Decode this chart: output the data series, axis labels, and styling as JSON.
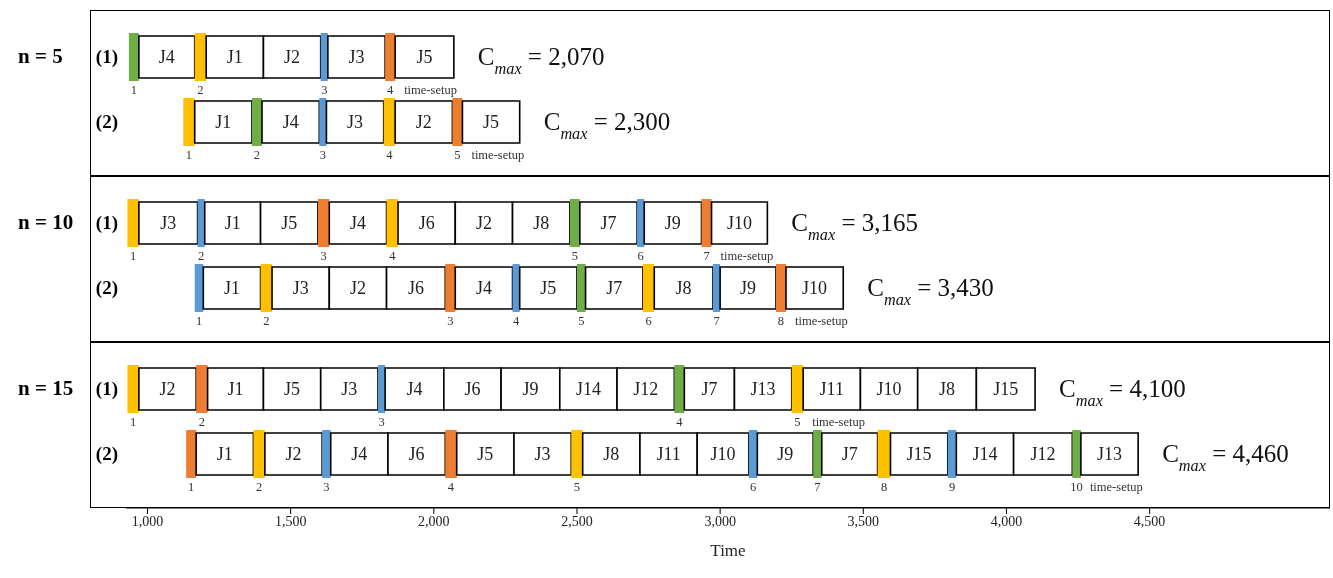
{
  "chart_data": [
    {
      "type": "bar",
      "orientation": "horizontal",
      "title": "n = 5",
      "categories": [
        "(1)",
        "(2)"
      ],
      "xlim": [
        925,
        5130
      ],
      "tick_labels": "y",
      "series": [
        {
          "base": [
            935,
            1125
          ],
          "values": [
            35,
            40
          ],
          "colors": [
            "#70ad47",
            "#ffc000"
          ],
          "value_labels": [
            null,
            null
          ]
        },
        {
          "base": [
            970,
            1165
          ],
          "values": [
            195,
            200
          ],
          "colors": [
            "#ffffff",
            "#ffffff"
          ],
          "value_labels": [
            "J4",
            "J1"
          ]
        },
        {
          "base": [
            1165,
            1365
          ],
          "values": [
            40,
            35
          ],
          "colors": [
            "#ffc000",
            "#70ad47"
          ],
          "value_labels": [
            null,
            null
          ]
        },
        {
          "base": [
            1205,
            1400
          ],
          "values": [
            200,
            200
          ],
          "colors": [
            "#ffffff",
            "#ffffff"
          ],
          "value_labels": [
            "J1",
            "J4"
          ]
        },
        {
          "base": [
            1405,
            1600
          ],
          "values": [
            200,
            25
          ],
          "colors": [
            "#ffffff",
            "#5b9bd5"
          ],
          "value_labels": [
            "J2",
            null
          ]
        },
        {
          "base": [
            1605,
            1625
          ],
          "values": [
            25,
            200
          ],
          "colors": [
            "#5b9bd5",
            "#ffffff"
          ],
          "value_labels": [
            null,
            "J3"
          ]
        },
        {
          "base": [
            1630,
            1825
          ],
          "values": [
            200,
            40
          ],
          "colors": [
            "#ffffff",
            "#ffc000"
          ],
          "value_labels": [
            "J3",
            null
          ]
        },
        {
          "base": [
            1830,
            1865
          ],
          "values": [
            35,
            200
          ],
          "colors": [
            "#ed7d31",
            "#ffffff"
          ],
          "value_labels": [
            null,
            "J2"
          ]
        },
        {
          "base": [
            1865,
            2065
          ],
          "values": [
            205,
            35
          ],
          "colors": [
            "#ffffff",
            "#ed7d31"
          ],
          "value_labels": [
            "J5",
            null
          ]
        },
        {
          "base": [
            null,
            2100
          ],
          "values": [
            null,
            200
          ],
          "colors": [
            null,
            "#ffffff"
          ],
          "value_labels": [
            null,
            "J5"
          ]
        }
      ],
      "annotations": [
        {
          "text": "C$_{max}$ = 2,070",
          "x": 2070,
          "y": "(1)"
        },
        {
          "text": "C$_{max}$ = 2,300",
          "x": 2300,
          "y": "(2)"
        },
        {
          "text": "time-setup",
          "x": 1865,
          "y": "(1)"
        },
        {
          "text": "time-setup",
          "x": 2100,
          "y": "(2)"
        },
        {
          "text": "1",
          "x": 935,
          "y": "(1)"
        },
        {
          "text": "2",
          "x": 1165,
          "y": "(1)"
        },
        {
          "text": "3",
          "x": 1605,
          "y": "(1)"
        },
        {
          "text": "4",
          "x": 1830,
          "y": "(1)"
        },
        {
          "text": "1",
          "x": 1125,
          "y": "(2)"
        },
        {
          "text": "2",
          "x": 1365,
          "y": "(2)"
        },
        {
          "text": "3",
          "x": 1600,
          "y": "(2)"
        },
        {
          "text": "4",
          "x": 1825,
          "y": "(2)"
        },
        {
          "text": "5",
          "x": 2065,
          "y": "(2)"
        }
      ]
    },
    {
      "type": "bar",
      "orientation": "horizontal",
      "title": "n = 10",
      "categories": [
        "(1)",
        "(2)"
      ],
      "xlim": [
        925,
        5130
      ],
      "tick_labels": "y",
      "series": [
        {
          "base": [
            930,
            1165
          ],
          "values": [
            40,
            30
          ],
          "colors": [
            "#ffc000",
            "#5b9bd5"
          ],
          "value_labels": [
            null,
            null
          ]
        },
        {
          "base": [
            970,
            1195
          ],
          "values": [
            205,
            200
          ],
          "colors": [
            "#ffffff",
            "#ffffff"
          ],
          "value_labels": [
            "J3",
            "J1"
          ]
        },
        {
          "base": [
            1175,
            1395
          ],
          "values": [
            25,
            40
          ],
          "colors": [
            "#5b9bd5",
            "#ffc000"
          ],
          "value_labels": [
            null,
            null
          ]
        },
        {
          "base": [
            1200,
            1435
          ],
          "values": [
            195,
            200
          ],
          "colors": [
            "#ffffff",
            "#ffffff"
          ],
          "value_labels": [
            "J1",
            "J3"
          ]
        },
        {
          "base": [
            1395,
            1635
          ],
          "values": [
            200,
            200
          ],
          "colors": [
            "#ffffff",
            "#ffffff"
          ],
          "value_labels": [
            "J5",
            "J2"
          ]
        },
        {
          "base": [
            1595,
            1835
          ],
          "values": [
            40,
            205
          ],
          "colors": [
            "#ed7d31",
            "#ffffff"
          ],
          "value_labels": [
            null,
            "J6"
          ]
        },
        {
          "base": [
            1635,
            2040
          ],
          "values": [
            200,
            35
          ],
          "colors": [
            "#ffffff",
            "#ed7d31"
          ],
          "value_labels": [
            "J4",
            null
          ]
        },
        {
          "base": [
            1835,
            2075
          ],
          "values": [
            40,
            200
          ],
          "colors": [
            "#ffc000",
            "#ffffff"
          ],
          "value_labels": [
            null,
            "J4"
          ]
        },
        {
          "base": [
            1875,
            2275
          ],
          "values": [
            200,
            25
          ],
          "colors": [
            "#ffffff",
            "#5b9bd5"
          ],
          "value_labels": [
            "J6",
            null
          ]
        },
        {
          "base": [
            2075,
            2300
          ],
          "values": [
            200,
            200
          ],
          "colors": [
            "#ffffff",
            "#ffffff"
          ],
          "value_labels": [
            "J2",
            "J5"
          ]
        },
        {
          "base": [
            2275,
            2500
          ],
          "values": [
            200,
            30
          ],
          "colors": [
            "#ffffff",
            "#70ad47"
          ],
          "value_labels": [
            "J8",
            null
          ]
        },
        {
          "base": [
            2475,
            2530
          ],
          "values": [
            35,
            200
          ],
          "colors": [
            "#70ad47",
            "#ffffff"
          ],
          "value_labels": [
            null,
            "J7"
          ]
        },
        {
          "base": [
            2510,
            2730
          ],
          "values": [
            200,
            40
          ],
          "colors": [
            "#ffffff",
            "#ffc000"
          ],
          "value_labels": [
            "J7",
            null
          ]
        },
        {
          "base": [
            2710,
            2770
          ],
          "values": [
            25,
            205
          ],
          "colors": [
            "#5b9bd5",
            "#ffffff"
          ],
          "value_labels": [
            null,
            "J8"
          ]
        },
        {
          "base": [
            2735,
            2975
          ],
          "values": [
            200,
            25
          ],
          "colors": [
            "#ffffff",
            "#5b9bd5"
          ],
          "value_labels": [
            "J9",
            null
          ]
        },
        {
          "base": [
            2935,
            3000
          ],
          "values": [
            35,
            195
          ],
          "colors": [
            "#ed7d31",
            "#ffffff"
          ],
          "value_labels": [
            null,
            "J9"
          ]
        },
        {
          "base": [
            2970,
            3195
          ],
          "values": [
            195,
            35
          ],
          "colors": [
            "#ffffff",
            "#ed7d31"
          ],
          "value_labels": [
            "J10",
            null
          ]
        },
        {
          "base": [
            null,
            3230
          ],
          "values": [
            null,
            200
          ],
          "colors": [
            null,
            "#ffffff"
          ],
          "value_labels": [
            null,
            "J10"
          ]
        }
      ],
      "annotations": [
        {
          "text": "C$_{max}$ = 3,165",
          "x": 3165,
          "y": "(1)"
        },
        {
          "text": "C$_{max}$ = 3,430",
          "x": 3430,
          "y": "(2)"
        },
        {
          "text": "time-setup",
          "x": 2970,
          "y": "(1)"
        },
        {
          "text": "time-setup",
          "x": 3230,
          "y": "(2)"
        },
        {
          "text": "1",
          "x": 930,
          "y": "(1)"
        },
        {
          "text": "2",
          "x": 1175,
          "y": "(1)"
        },
        {
          "text": "3",
          "x": 1595,
          "y": "(1)"
        },
        {
          "text": "4",
          "x": 1835,
          "y": "(1)"
        },
        {
          "text": "5",
          "x": 2475,
          "y": "(1)"
        },
        {
          "text": "6",
          "x": 2710,
          "y": "(1)"
        },
        {
          "text": "7",
          "x": 2935,
          "y": "(1)"
        },
        {
          "text": "1",
          "x": 1165,
          "y": "(2)"
        },
        {
          "text": "2",
          "x": 1395,
          "y": "(2)"
        },
        {
          "text": "3",
          "x": 2040,
          "y": "(2)"
        },
        {
          "text": "4",
          "x": 2275,
          "y": "(2)"
        },
        {
          "text": "5",
          "x": 2500,
          "y": "(2)"
        },
        {
          "text": "6",
          "x": 2730,
          "y": "(2)"
        },
        {
          "text": "7",
          "x": 2975,
          "y": "(2)"
        },
        {
          "text": "8",
          "x": 3195,
          "y": "(2)"
        }
      ]
    },
    {
      "type": "bar",
      "orientation": "horizontal",
      "title": "n = 15",
      "categories": [
        "(1)",
        "(2)"
      ],
      "xlim": [
        925,
        5130
      ],
      "xticks": [
        {
          "value": 1000,
          "label": "1,000"
        },
        {
          "value": 1500,
          "label": "1,500"
        },
        {
          "value": 2000,
          "label": "2,000"
        },
        {
          "value": 2500,
          "label": "2,500"
        },
        {
          "value": 3000,
          "label": "3,000"
        },
        {
          "value": 3500,
          "label": "3,500"
        },
        {
          "value": 4000,
          "label": "4,000"
        },
        {
          "value": 4500,
          "label": "4,500"
        }
      ],
      "xlabel": "Time",
      "series": [
        {
          "base": [
            930,
            1135
          ],
          "values": [
            40,
            35
          ],
          "colors": [
            "#ffc000",
            "#ed7d31"
          ],
          "value_labels": [
            null,
            null
          ]
        },
        {
          "base": [
            970,
            1170
          ],
          "values": [
            200,
            200
          ],
          "colors": [
            "#ffffff",
            "#ffffff"
          ],
          "value_labels": [
            "J2",
            "J1"
          ]
        },
        {
          "base": [
            1170,
            1370
          ],
          "values": [
            40,
            40
          ],
          "colors": [
            "#ed7d31",
            "#ffc000"
          ],
          "value_labels": [
            null,
            null
          ]
        },
        {
          "base": [
            1210,
            1410
          ],
          "values": [
            195,
            200
          ],
          "colors": [
            "#ffffff",
            "#ffffff"
          ],
          "value_labels": [
            "J1",
            "J2"
          ]
        },
        {
          "base": [
            1405,
            1610
          ],
          "values": [
            200,
            30
          ],
          "colors": [
            "#ffffff",
            "#5b9bd5"
          ],
          "value_labels": [
            "J5",
            null
          ]
        },
        {
          "base": [
            1605,
            1640
          ],
          "values": [
            200,
            200
          ],
          "colors": [
            "#ffffff",
            "#ffffff"
          ],
          "value_labels": [
            "J3",
            "J4"
          ]
        },
        {
          "base": [
            1805,
            1840
          ],
          "values": [
            25,
            200
          ],
          "colors": [
            "#5b9bd5",
            "#ffffff"
          ],
          "value_labels": [
            null,
            "J6"
          ]
        },
        {
          "base": [
            1830,
            2040
          ],
          "values": [
            205,
            40
          ],
          "colors": [
            "#ffffff",
            "#ed7d31"
          ],
          "value_labels": [
            "J4",
            null
          ]
        },
        {
          "base": [
            2035,
            2080
          ],
          "values": [
            200,
            200
          ],
          "colors": [
            "#ffffff",
            "#ffffff"
          ],
          "value_labels": [
            "J6",
            "J5"
          ]
        },
        {
          "base": [
            2235,
            2280
          ],
          "values": [
            205,
            200
          ],
          "colors": [
            "#ffffff",
            "#ffffff"
          ],
          "value_labels": [
            "J9",
            "J3"
          ]
        },
        {
          "base": [
            2440,
            2480
          ],
          "values": [
            200,
            40
          ],
          "colors": [
            "#ffffff",
            "#ffc000"
          ],
          "value_labels": [
            "J14",
            null
          ]
        },
        {
          "base": [
            2640,
            2520
          ],
          "values": [
            200,
            200
          ],
          "colors": [
            "#ffffff",
            "#ffffff"
          ],
          "value_labels": [
            "J12",
            "J8"
          ]
        },
        {
          "base": [
            2840,
            2720
          ],
          "values": [
            35,
            200
          ],
          "colors": [
            "#70ad47",
            "#ffffff"
          ],
          "value_labels": [
            null,
            "J11"
          ]
        },
        {
          "base": [
            2875,
            2920
          ],
          "values": [
            175,
            180
          ],
          "colors": [
            "#ffffff",
            "#ffffff"
          ],
          "value_labels": [
            "J7",
            "J10"
          ]
        },
        {
          "base": [
            3050,
            3100
          ],
          "values": [
            200,
            30
          ],
          "colors": [
            "#ffffff",
            "#5b9bd5"
          ],
          "value_labels": [
            "J13",
            null
          ]
        },
        {
          "base": [
            3250,
            3130
          ],
          "values": [
            40,
            195
          ],
          "colors": [
            "#ffc000",
            "#ffffff"
          ],
          "value_labels": [
            null,
            "J9"
          ]
        },
        {
          "base": [
            3290,
            3325
          ],
          "values": [
            200,
            30
          ],
          "colors": [
            "#ffffff",
            "#70ad47"
          ],
          "value_labels": [
            "J11",
            null
          ]
        },
        {
          "base": [
            3490,
            3355
          ],
          "values": [
            200,
            195
          ],
          "colors": [
            "#ffffff",
            "#ffffff"
          ],
          "value_labels": [
            "J10",
            "J7"
          ]
        },
        {
          "base": [
            3690,
            3550
          ],
          "values": [
            205,
            45
          ],
          "colors": [
            "#ffffff",
            "#ffc000"
          ],
          "value_labels": [
            "J8",
            null
          ]
        },
        {
          "base": [
            3895,
            3595
          ],
          "values": [
            205,
            200
          ],
          "colors": [
            "#ffffff",
            "#ffffff"
          ],
          "value_labels": [
            "J15",
            "J15"
          ]
        },
        {
          "base": [
            null,
            3795
          ],
          "values": [
            null,
            30
          ],
          "colors": [
            null,
            "#5b9bd5"
          ],
          "value_labels": [
            null,
            null
          ]
        },
        {
          "base": [
            null,
            3825
          ],
          "values": [
            null,
            200
          ],
          "colors": [
            null,
            "#ffffff"
          ],
          "value_labels": [
            null,
            "J14"
          ]
        },
        {
          "base": [
            null,
            4025
          ],
          "values": [
            null,
            205
          ],
          "colors": [
            null,
            "#ffffff"
          ],
          "value_labels": [
            null,
            "J12"
          ]
        },
        {
          "base": [
            null,
            4230
          ],
          "values": [
            null,
            30
          ],
          "colors": [
            null,
            "#70ad47"
          ],
          "value_labels": [
            null,
            null
          ]
        },
        {
          "base": [
            null,
            4260
          ],
          "values": [
            null,
            200
          ],
          "colors": [
            null,
            "#ffffff"
          ],
          "value_labels": [
            null,
            "J13"
          ]
        }
      ],
      "annotations": [
        {
          "text": "C$_{max}$ = 4,100",
          "x": 4100,
          "y": "(1)"
        },
        {
          "text": "C$_{max}$ = 4,460",
          "x": 4460,
          "y": "(2)"
        },
        {
          "text": "time-setup",
          "x": 3290,
          "y": "(1)"
        },
        {
          "text": "time-setup",
          "x": 4260,
          "y": "(2)"
        },
        {
          "text": "1",
          "x": 930,
          "y": "(1)"
        },
        {
          "text": "2",
          "x": 1170,
          "y": "(1)"
        },
        {
          "text": "3",
          "x": 1805,
          "y": "(1)"
        },
        {
          "text": "4",
          "x": 2840,
          "y": "(1)"
        },
        {
          "text": "5",
          "x": 3250,
          "y": "(1)"
        },
        {
          "text": "1",
          "x": 1135,
          "y": "(2)"
        },
        {
          "text": "2",
          "x": 1370,
          "y": "(2)"
        },
        {
          "text": "3",
          "x": 1610,
          "y": "(2)"
        },
        {
          "text": "4",
          "x": 2040,
          "y": "(2)"
        },
        {
          "text": "5",
          "x": 2480,
          "y": "(2)"
        },
        {
          "text": "6",
          "x": 3100,
          "y": "(2)"
        },
        {
          "text": "7",
          "x": 3325,
          "y": "(2)"
        },
        {
          "text": "8",
          "x": 3550,
          "y": "(2)"
        },
        {
          "text": "9",
          "x": 3795,
          "y": "(2)"
        },
        {
          "text": "10",
          "x": 4230,
          "y": "(2)"
        }
      ]
    }
  ]
}
